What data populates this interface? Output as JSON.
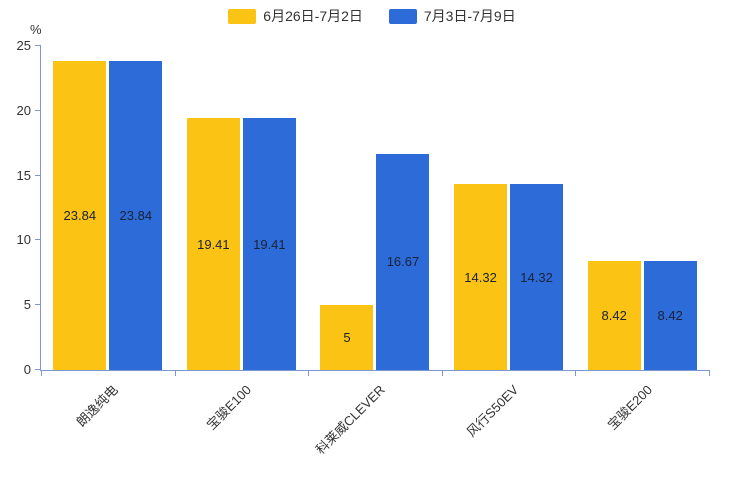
{
  "chart_data": {
    "type": "bar",
    "title": "",
    "unit": "%",
    "categories": [
      "朗逸纯电",
      "宝骏E100",
      "科莱威CLEVER",
      "风行S50EV",
      "宝骏E200"
    ],
    "series": [
      {
        "name": "6月26日-7月2日",
        "color": "#FBC313",
        "values": [
          23.84,
          19.41,
          5,
          14.32,
          8.42
        ]
      },
      {
        "name": "7月3日-7月9日",
        "color": "#2C6BD8",
        "values": [
          23.84,
          19.41,
          16.67,
          14.32,
          8.42
        ]
      }
    ],
    "ylim": [
      0,
      25
    ],
    "yticks": [
      0,
      5,
      10,
      15,
      20,
      25
    ],
    "grid": false,
    "legend_position": "top",
    "axis_color": "#7D97CF",
    "tick_label_color": "#333333",
    "bar_value_label_color": "#1A2238"
  }
}
